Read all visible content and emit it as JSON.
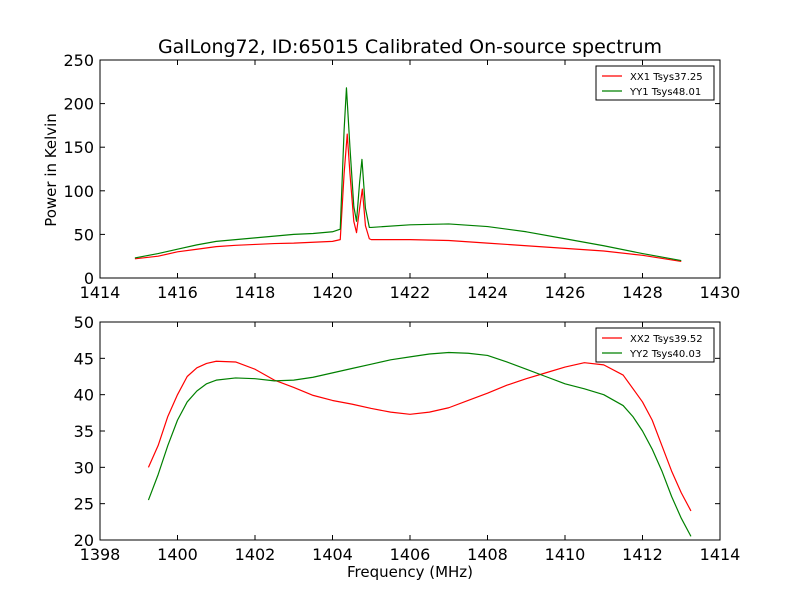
{
  "chart_data": [
    {
      "type": "line",
      "title": "GalLong72, ID:65015 Calibrated On-source spectrum",
      "xlabel": "",
      "ylabel": "Power in Kelvin",
      "xlim": [
        1414,
        1430
      ],
      "ylim": [
        0,
        250
      ],
      "xticks": [
        1414,
        1416,
        1418,
        1420,
        1422,
        1424,
        1426,
        1428,
        1430
      ],
      "yticks": [
        0,
        50,
        100,
        150,
        200,
        250
      ],
      "grid": false,
      "legend": "top-right",
      "series": [
        {
          "name": "XX1 Tsys37.25",
          "color": "#ff0000",
          "points": [
            [
              1414.9,
              22
            ],
            [
              1415.5,
              25
            ],
            [
              1416,
              30
            ],
            [
              1416.5,
              33
            ],
            [
              1417,
              36
            ],
            [
              1417.5,
              37.5
            ],
            [
              1418,
              38.5
            ],
            [
              1418.5,
              39.5
            ],
            [
              1419,
              40
            ],
            [
              1419.5,
              41
            ],
            [
              1420,
              42
            ],
            [
              1420.2,
              44
            ],
            [
              1420.3,
              120
            ],
            [
              1420.38,
              165
            ],
            [
              1420.45,
              120
            ],
            [
              1420.55,
              65
            ],
            [
              1420.62,
              52
            ],
            [
              1420.7,
              80
            ],
            [
              1420.77,
              102
            ],
            [
              1420.85,
              60
            ],
            [
              1420.95,
              45
            ],
            [
              1421,
              44
            ],
            [
              1422,
              44
            ],
            [
              1423,
              43
            ],
            [
              1424,
              40
            ],
            [
              1425,
              37
            ],
            [
              1426,
              34
            ],
            [
              1427,
              31
            ],
            [
              1428,
              26
            ],
            [
              1429,
              19
            ]
          ]
        },
        {
          "name": "YY1 Tsys48.01",
          "color": "#008000",
          "points": [
            [
              1414.9,
              23
            ],
            [
              1415.5,
              28
            ],
            [
              1416,
              33
            ],
            [
              1416.5,
              38
            ],
            [
              1417,
              42
            ],
            [
              1417.5,
              44
            ],
            [
              1418,
              46
            ],
            [
              1418.5,
              48
            ],
            [
              1419,
              50
            ],
            [
              1419.5,
              51
            ],
            [
              1420,
              53
            ],
            [
              1420.2,
              56
            ],
            [
              1420.3,
              170
            ],
            [
              1420.36,
              218
            ],
            [
              1420.45,
              150
            ],
            [
              1420.55,
              82
            ],
            [
              1420.62,
              65
            ],
            [
              1420.7,
              110
            ],
            [
              1420.76,
              136
            ],
            [
              1420.85,
              80
            ],
            [
              1420.95,
              58
            ],
            [
              1421,
              58
            ],
            [
              1422,
              61
            ],
            [
              1423,
              62
            ],
            [
              1424,
              59
            ],
            [
              1425,
              53
            ],
            [
              1426,
              45
            ],
            [
              1427,
              37
            ],
            [
              1428,
              28
            ],
            [
              1429,
              20
            ]
          ]
        }
      ]
    },
    {
      "type": "line",
      "title": "",
      "xlabel": "Frequency (MHz)",
      "ylabel": "",
      "xlim": [
        1398,
        1414
      ],
      "ylim": [
        20,
        50
      ],
      "xticks": [
        1398,
        1400,
        1402,
        1404,
        1406,
        1408,
        1410,
        1412,
        1414
      ],
      "yticks": [
        20,
        25,
        30,
        35,
        40,
        45,
        50
      ],
      "grid": false,
      "legend": "top-right",
      "series": [
        {
          "name": "XX2 Tsys39.52",
          "color": "#ff0000",
          "points": [
            [
              1399.25,
              30
            ],
            [
              1399.5,
              33
            ],
            [
              1399.75,
              37
            ],
            [
              1400,
              40
            ],
            [
              1400.25,
              42.5
            ],
            [
              1400.5,
              43.7
            ],
            [
              1400.75,
              44.3
            ],
            [
              1401,
              44.6
            ],
            [
              1401.5,
              44.5
            ],
            [
              1402,
              43.5
            ],
            [
              1402.5,
              42
            ],
            [
              1403,
              41
            ],
            [
              1403.5,
              39.9
            ],
            [
              1404,
              39.2
            ],
            [
              1404.5,
              38.7
            ],
            [
              1405,
              38.1
            ],
            [
              1405.5,
              37.6
            ],
            [
              1406,
              37.3
            ],
            [
              1406.5,
              37.6
            ],
            [
              1407,
              38.2
            ],
            [
              1407.5,
              39.2
            ],
            [
              1408,
              40.2
            ],
            [
              1408.5,
              41.3
            ],
            [
              1409,
              42.2
            ],
            [
              1409.5,
              43
            ],
            [
              1410,
              43.8
            ],
            [
              1410.5,
              44.4
            ],
            [
              1411,
              44.1
            ],
            [
              1411.5,
              42.7
            ],
            [
              1412,
              39
            ],
            [
              1412.25,
              36.5
            ],
            [
              1412.5,
              33
            ],
            [
              1412.75,
              29.5
            ],
            [
              1413,
              26.5
            ],
            [
              1413.25,
              24
            ]
          ]
        },
        {
          "name": "YY2 Tsys40.03",
          "color": "#008000",
          "points": [
            [
              1399.25,
              25.5
            ],
            [
              1399.5,
              29
            ],
            [
              1399.75,
              33
            ],
            [
              1400,
              36.5
            ],
            [
              1400.25,
              39
            ],
            [
              1400.5,
              40.5
            ],
            [
              1400.75,
              41.5
            ],
            [
              1401,
              42
            ],
            [
              1401.5,
              42.3
            ],
            [
              1402,
              42.2
            ],
            [
              1402.5,
              41.9
            ],
            [
              1403,
              42
            ],
            [
              1403.5,
              42.4
            ],
            [
              1404,
              43
            ],
            [
              1404.5,
              43.6
            ],
            [
              1405,
              44.2
            ],
            [
              1405.5,
              44.8
            ],
            [
              1406,
              45.2
            ],
            [
              1406.5,
              45.6
            ],
            [
              1407,
              45.8
            ],
            [
              1407.5,
              45.7
            ],
            [
              1408,
              45.4
            ],
            [
              1408.5,
              44.5
            ],
            [
              1409,
              43.5
            ],
            [
              1409.5,
              42.5
            ],
            [
              1410,
              41.5
            ],
            [
              1410.5,
              40.8
            ],
            [
              1411,
              40
            ],
            [
              1411.5,
              38.5
            ],
            [
              1411.75,
              37
            ],
            [
              1412,
              35
            ],
            [
              1412.25,
              32.5
            ],
            [
              1412.5,
              29.5
            ],
            [
              1412.75,
              26
            ],
            [
              1413,
              23
            ],
            [
              1413.25,
              20.5
            ]
          ]
        }
      ]
    }
  ]
}
